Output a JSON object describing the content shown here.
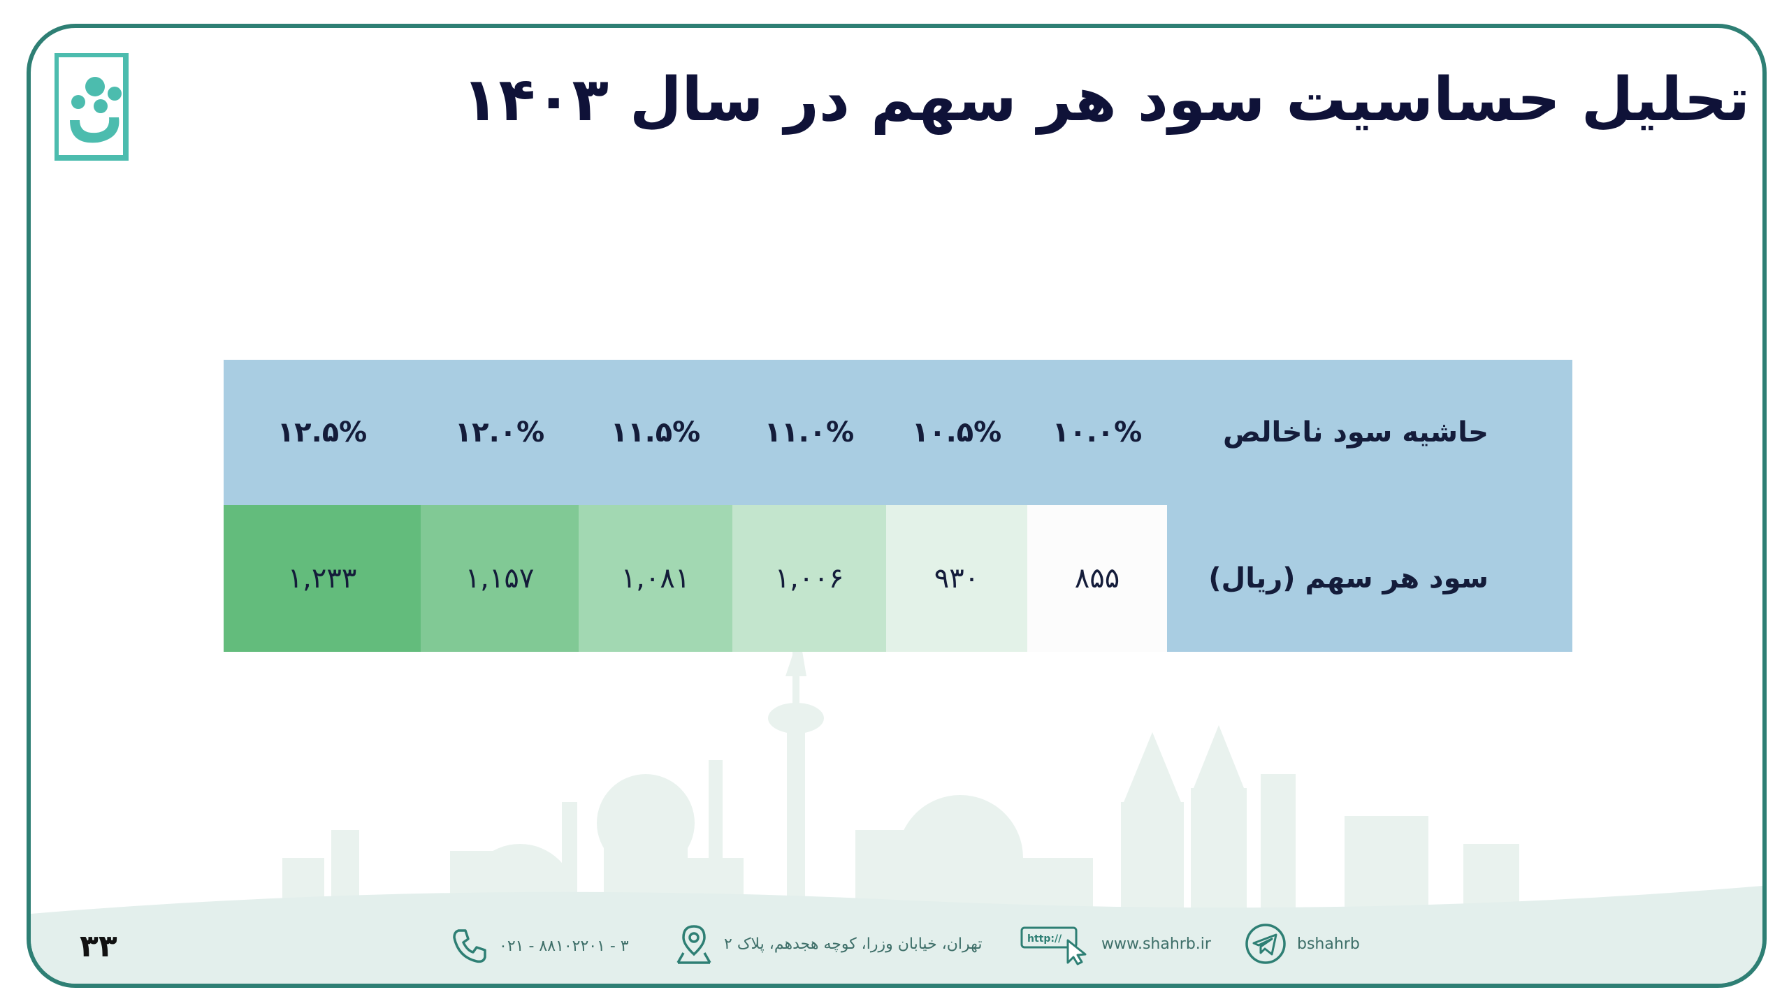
{
  "title": "تحلیل حساسیت سود هر سهم در سال ۱۴۰۳",
  "table": {
    "header_label": "حاشیه سود ناخالص",
    "row_label": "سود هر سهم (ریال)",
    "margins": [
      "۱۰.۰%",
      "۱۰.۵%",
      "۱۱.۰%",
      "۱۱.۵%",
      "۱۲.۰%",
      "۱۲.۵%"
    ],
    "eps": [
      "۸۵۵",
      "۹۳۰",
      "۱,۰۰۶",
      "۱,۰۸۱",
      "۱,۱۵۷",
      "۱,۲۳۳"
    ],
    "cell_colors": [
      "#fcfcfc",
      "#e3f2e8",
      "#c3e5cd",
      "#a2d8b2",
      "#81c995",
      "#63bc7c"
    ]
  },
  "footer": {
    "page_number": "۳۳",
    "phone": "۰۲۱ - ۸۸۱۰۲۲۰۱ - ۳",
    "address": "تهران، خیابان وزرا، کوچه هجدهم، پلاک ۲",
    "http_label": "http://",
    "website": "www.shahrb.ir",
    "telegram": "bshahrb"
  },
  "colors": {
    "frame": "#2e7f74",
    "title": "#0f1238",
    "header_bg": "#a9cde2",
    "accent": "#4cbcae"
  }
}
